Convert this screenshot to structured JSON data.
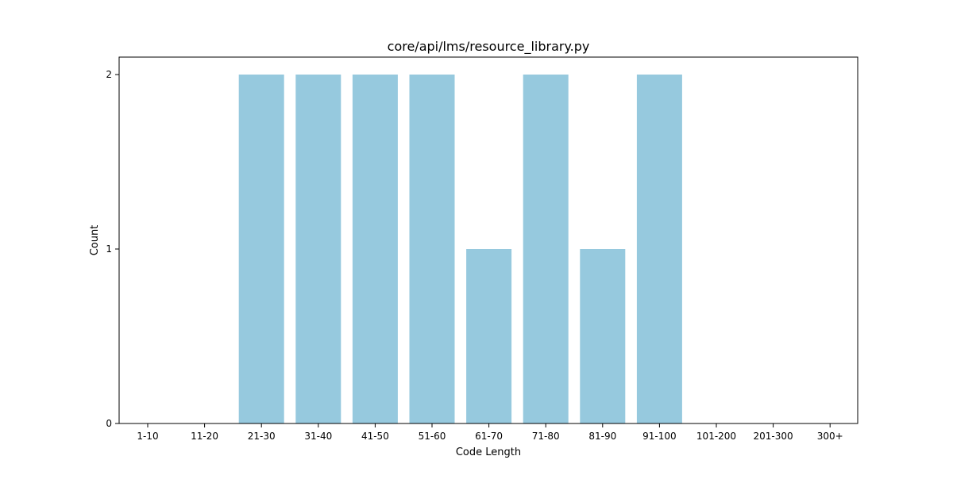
{
  "chart_data": {
    "type": "bar",
    "title": "core/api/lms/resource_library.py",
    "xlabel": "Code Length",
    "ylabel": "Count",
    "categories": [
      "1-10",
      "11-20",
      "21-30",
      "31-40",
      "41-50",
      "51-60",
      "61-70",
      "71-80",
      "81-90",
      "91-100",
      "101-200",
      "201-300",
      "300+"
    ],
    "values": [
      0,
      0,
      2,
      2,
      2,
      2,
      1,
      2,
      1,
      2,
      0,
      0,
      0
    ],
    "ylim": [
      0,
      2.1
    ],
    "yticks": [
      "0",
      "1",
      "2"
    ],
    "bar_color": "#96c9de",
    "grid": false,
    "legend": "none"
  }
}
